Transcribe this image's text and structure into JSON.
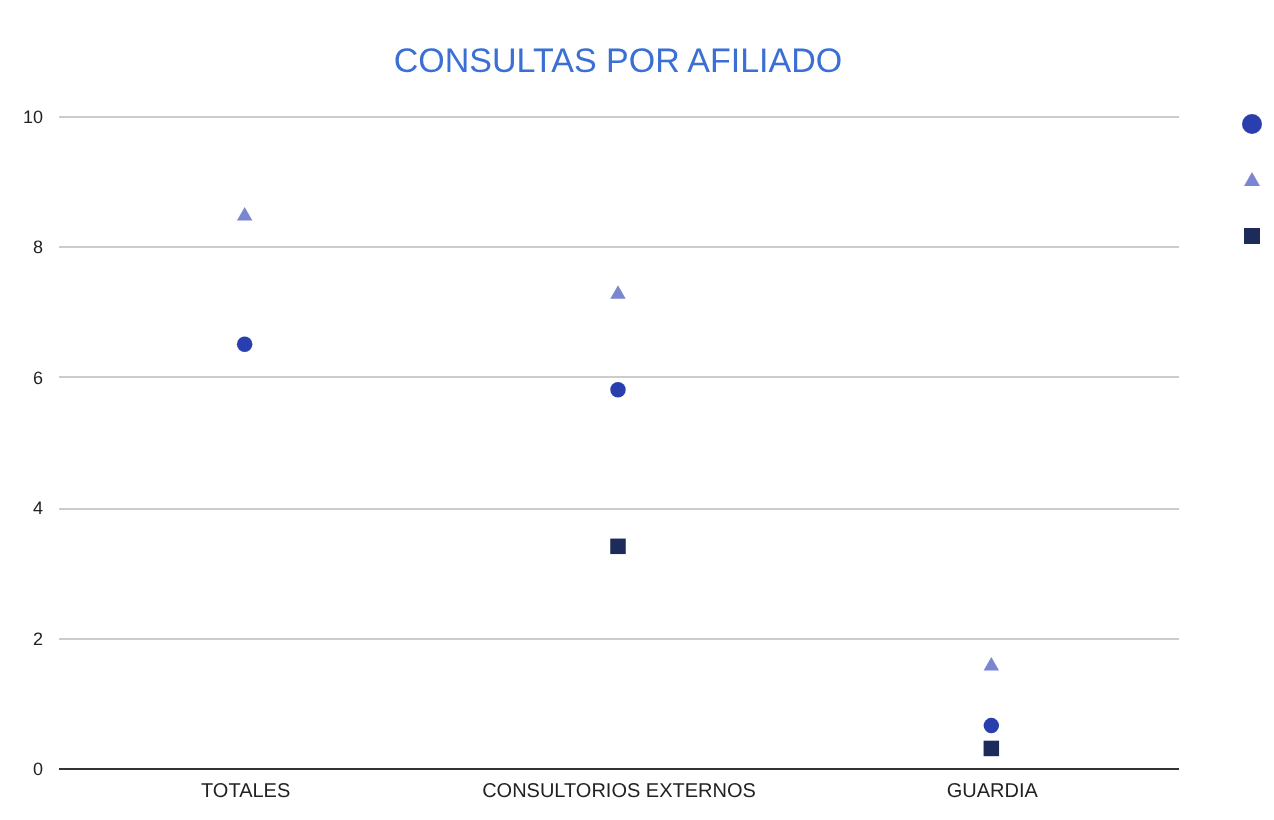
{
  "chart_data": {
    "type": "scatter",
    "title": "CONSULTAS POR AFILIADO",
    "categories": [
      "TOTALES",
      "CONSULTORIOS EXTERNOS",
      "GUARDIA"
    ],
    "series": [
      {
        "color": "#2a3fae",
        "marker": "circle",
        "values": [
          6.5,
          5.8,
          0.65
        ]
      },
      {
        "color": "#7b86d0",
        "marker": "triangle",
        "values": [
          8.5,
          7.3,
          1.6
        ]
      },
      {
        "color": "#1c2a5c",
        "marker": "square",
        "values": [
          null,
          3.4,
          0.3
        ]
      }
    ],
    "ylim": [
      0,
      10
    ],
    "yticks": [
      0,
      2,
      4,
      6,
      8,
      10
    ],
    "grid": "y"
  }
}
